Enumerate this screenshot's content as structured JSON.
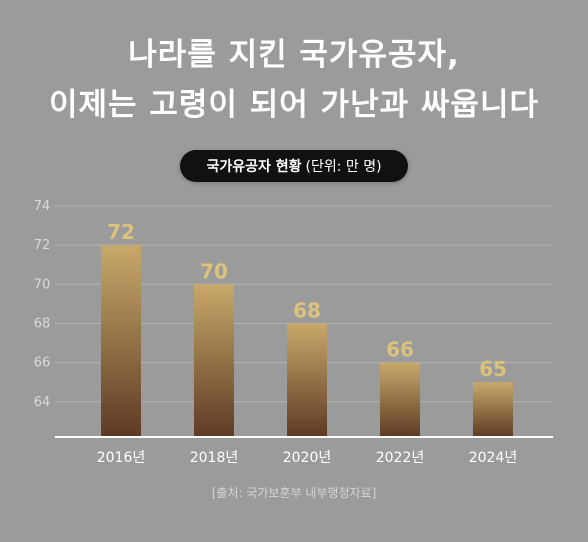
{
  "headline": {
    "line1": "나라를 지킨 국가유공자,",
    "line2": "이제는 고령이 되어 가난과 싸웁니다"
  },
  "pill": {
    "title": "국가유공자 현황",
    "unit": "(단위: 만 명)"
  },
  "source": "[출처: 국가보훈부 내부행정자료]",
  "colors": {
    "background": "#9b9b9b",
    "bar_top": "#c8a96a",
    "bar_bottom": "#5e3a24",
    "value_label": "#dcc27a",
    "axis": "#ffffff",
    "grid": "#b3b3b3"
  },
  "chart_data": {
    "type": "bar",
    "categories": [
      "2016년",
      "2018년",
      "2020년",
      "2022년",
      "2024년"
    ],
    "values": [
      72,
      70,
      68,
      66,
      65
    ],
    "value_labels": [
      "72",
      "70",
      "68",
      "66",
      "65"
    ],
    "yticks": [
      64,
      66,
      68,
      70,
      72,
      74
    ],
    "ylim": [
      62.2,
      74
    ],
    "grid": true,
    "xlabel": "",
    "ylabel": ""
  }
}
